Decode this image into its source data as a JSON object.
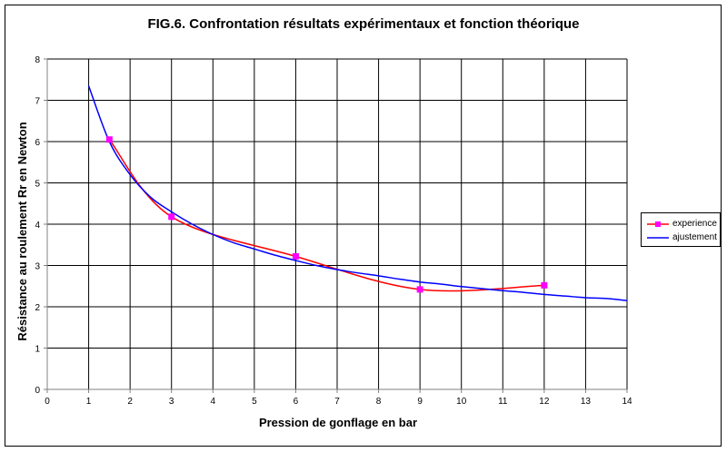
{
  "chart_data": {
    "type": "line",
    "title": "FIG.6. Confrontation résultats expérimentaux et fonction théorique",
    "xlabel": "Pression de gonflage en  bar",
    "ylabel": "Résistance au roulement Rr en Newton",
    "xlim": [
      0,
      14
    ],
    "ylim": [
      0,
      8
    ],
    "x_ticks": [
      "0",
      "1",
      "2",
      "3",
      "4",
      "5",
      "6",
      "7",
      "8",
      "9",
      "10",
      "11",
      "12",
      "13",
      "14"
    ],
    "y_ticks": [
      "0",
      "1",
      "2",
      "3",
      "4",
      "5",
      "6",
      "7",
      "8"
    ],
    "grid": true,
    "legend_position": "right",
    "series": [
      {
        "name": "experience",
        "color": "#ff0000",
        "marker_color": "#ff00ff",
        "marker": "square",
        "points": [
          [
            1.5,
            6.05
          ],
          [
            3,
            4.18
          ],
          [
            6,
            3.22
          ],
          [
            9,
            2.42
          ],
          [
            12,
            2.52
          ]
        ]
      },
      {
        "name": "ajustement",
        "color": "#0000ff",
        "marker": "none",
        "points": [
          [
            1,
            7.35
          ],
          [
            1.5,
            6.0
          ],
          [
            2,
            5.2
          ],
          [
            2.5,
            4.65
          ],
          [
            3,
            4.3
          ],
          [
            3.5,
            4.0
          ],
          [
            4,
            3.75
          ],
          [
            4.5,
            3.55
          ],
          [
            5,
            3.4
          ],
          [
            5.5,
            3.25
          ],
          [
            6,
            3.12
          ],
          [
            6.5,
            3.0
          ],
          [
            7,
            2.9
          ],
          [
            7.5,
            2.82
          ],
          [
            8,
            2.75
          ],
          [
            8.5,
            2.67
          ],
          [
            9,
            2.6
          ],
          [
            9.5,
            2.55
          ],
          [
            10,
            2.49
          ],
          [
            10.5,
            2.44
          ],
          [
            11,
            2.39
          ],
          [
            11.5,
            2.35
          ],
          [
            12,
            2.3
          ],
          [
            12.5,
            2.26
          ],
          [
            13,
            2.22
          ],
          [
            13.5,
            2.2
          ],
          [
            14,
            2.15
          ]
        ]
      }
    ]
  },
  "colors": {
    "plot_background": "#ffffff",
    "gridline": "#000000",
    "axis": "#808080"
  }
}
